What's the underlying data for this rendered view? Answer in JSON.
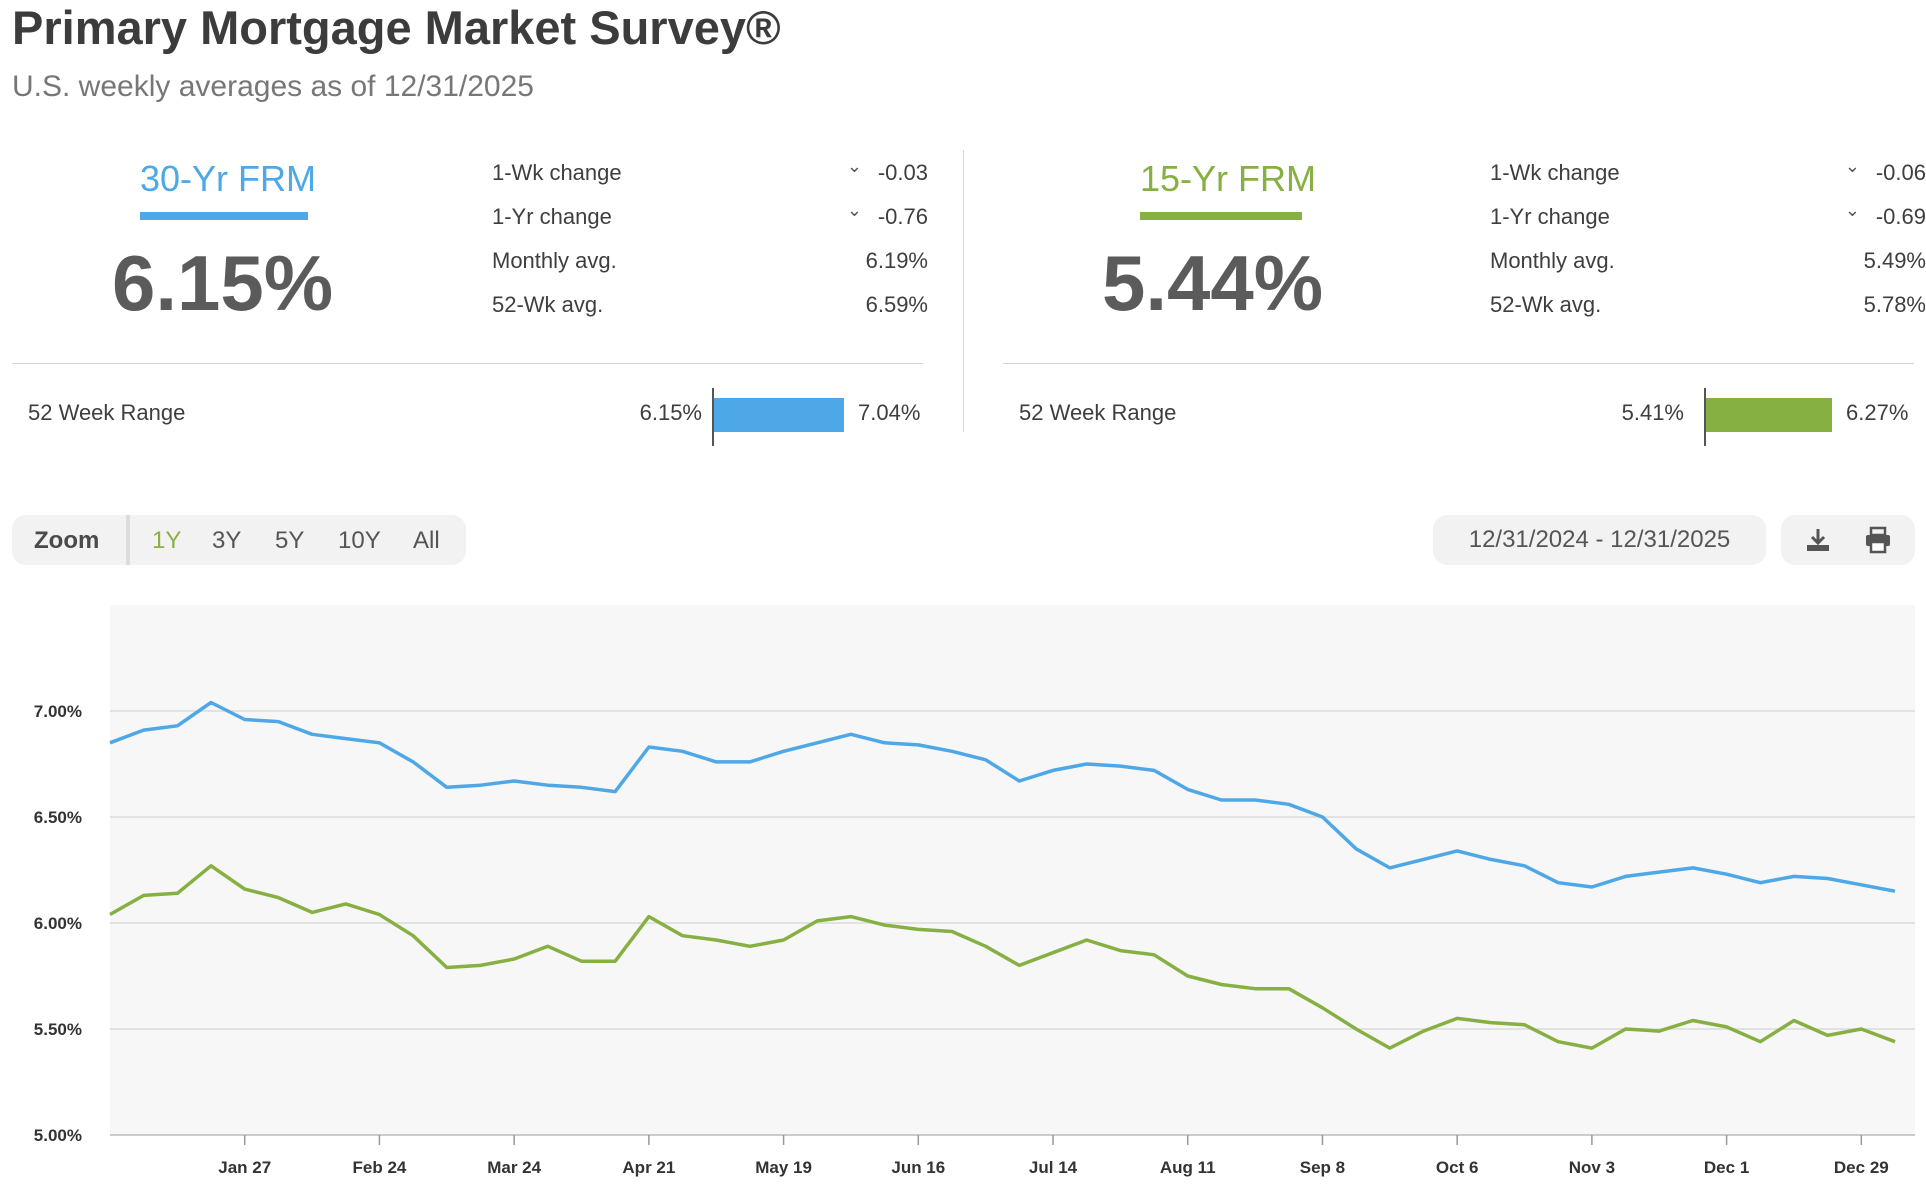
{
  "header": {
    "title": "Primary Mortgage Market Survey®",
    "subtitle": "U.S. weekly averages as of 12/31/2025"
  },
  "colors": {
    "frm30": "#4ea8e8",
    "frm15": "#87b043",
    "active_zoom": "#8bb042"
  },
  "frm30": {
    "name": "30-Yr FRM",
    "rate": "6.15%",
    "stats": [
      {
        "label": "1-Wk change",
        "value": "-0.03",
        "icon": "chevron-down-icon"
      },
      {
        "label": "1-Yr change",
        "value": "-0.76",
        "icon": "chevron-down-icon"
      },
      {
        "label": "Monthly avg.",
        "value": "6.19%"
      },
      {
        "label": "52-Wk avg.",
        "value": "6.59%"
      }
    ],
    "range_label": "52 Week Range",
    "range_low": "6.15%",
    "range_high": "7.04%"
  },
  "frm15": {
    "name": "15-Yr FRM",
    "rate": "5.44%",
    "stats": [
      {
        "label": "1-Wk change",
        "value": "-0.06",
        "icon": "chevron-down-icon"
      },
      {
        "label": "1-Yr change",
        "value": "-0.69",
        "icon": "chevron-down-icon"
      },
      {
        "label": "Monthly avg.",
        "value": "5.49%"
      },
      {
        "label": "52-Wk avg.",
        "value": "5.78%"
      }
    ],
    "range_label": "52 Week Range",
    "range_low": "5.41%",
    "range_high": "6.27%"
  },
  "controls": {
    "zoom_label": "Zoom",
    "zoom_options": [
      "1Y",
      "3Y",
      "5Y",
      "10Y",
      "All"
    ],
    "zoom_selected": "1Y",
    "date_range": "12/31/2024 - 12/31/2025",
    "download_icon": "download-icon",
    "print_icon": "printer-icon"
  },
  "chart_data": {
    "type": "line",
    "y_ticks": [
      "7.00%",
      "6.50%",
      "6.00%",
      "5.50%",
      "5.00%"
    ],
    "ylim": [
      5.0,
      7.5
    ],
    "x_ticks": [
      "Jan 27",
      "Feb 24",
      "Mar 24",
      "Apr 21",
      "May 19",
      "Jun 16",
      "Jul 14",
      "Aug 11",
      "Sep 8",
      "Oct 6",
      "Nov 3",
      "Dec 1",
      "Dec 29"
    ],
    "x_tick_index": [
      4,
      8,
      12,
      16,
      20,
      24,
      28,
      32,
      36,
      40,
      44,
      48,
      52
    ],
    "grid": true,
    "legend": "none",
    "series": [
      {
        "color": "#4ea8e8",
        "values": [
          6.85,
          6.91,
          6.93,
          7.04,
          6.96,
          6.95,
          6.89,
          6.87,
          6.85,
          6.76,
          6.64,
          6.65,
          6.67,
          6.65,
          6.64,
          6.62,
          6.83,
          6.81,
          6.76,
          6.76,
          6.81,
          6.85,
          6.89,
          6.85,
          6.84,
          6.81,
          6.77,
          6.67,
          6.72,
          6.75,
          6.74,
          6.72,
          6.63,
          6.58,
          6.58,
          6.56,
          6.5,
          6.35,
          6.26,
          6.3,
          6.34,
          6.3,
          6.27,
          6.19,
          6.17,
          6.22,
          6.24,
          6.26,
          6.23,
          6.19,
          6.22,
          6.21,
          6.18,
          6.15
        ]
      },
      {
        "color": "#87b043",
        "values": [
          6.04,
          6.13,
          6.14,
          6.27,
          6.16,
          6.12,
          6.05,
          6.09,
          6.04,
          5.94,
          5.79,
          5.8,
          5.83,
          5.89,
          5.82,
          5.82,
          6.03,
          5.94,
          5.92,
          5.89,
          5.92,
          6.01,
          6.03,
          5.99,
          5.97,
          5.96,
          5.89,
          5.8,
          5.86,
          5.92,
          5.87,
          5.85,
          5.75,
          5.71,
          5.69,
          5.69,
          5.6,
          5.5,
          5.41,
          5.49,
          5.55,
          5.53,
          5.52,
          5.44,
          5.41,
          5.5,
          5.49,
          5.54,
          5.51,
          5.44,
          5.54,
          5.47,
          5.5,
          5.44
        ]
      }
    ]
  }
}
